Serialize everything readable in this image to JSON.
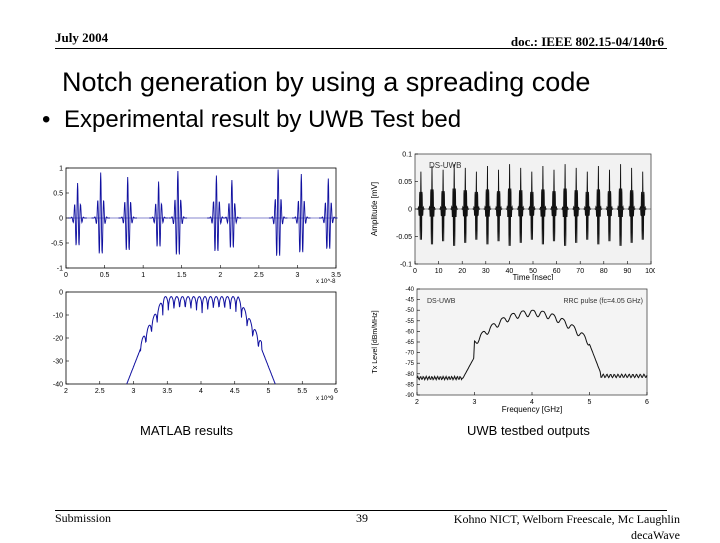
{
  "header": {
    "date": "July 2004",
    "doc": "doc.: IEEE 802.15-04/140r6"
  },
  "title": "Notch generation by using a spreading code",
  "bullet": "Experimental result by UWB Test bed",
  "captions": {
    "left": "MATLAB results",
    "right": "UWB testbed outputs"
  },
  "footer": {
    "left": "Submission",
    "page": "39",
    "right_line1": "Kohno NICT, Welborn Freescale, Mc Laughlin",
    "right_line2": "decaWave"
  },
  "chart_data": [
    {
      "type": "line",
      "panel": "matlab-time",
      "x_ticks": [
        "0",
        "0.5",
        "1",
        "1.5",
        "2",
        "2.5",
        "3",
        "3.5"
      ],
      "x_exponent": "x 10^-8",
      "y_ticks": [
        "1",
        "0.5",
        "0",
        "-0.5",
        "-1"
      ],
      "xlim": [
        0,
        3.5
      ],
      "ylim": [
        -1,
        1
      ],
      "pulse_centers": [
        0.15,
        0.45,
        0.8,
        1.2,
        1.45,
        1.95,
        2.15,
        2.75,
        3.05,
        3.4
      ],
      "colors": {
        "trace": "#1010a0"
      }
    },
    {
      "type": "line",
      "panel": "matlab-spectrum",
      "x_ticks": [
        "2",
        "2.5",
        "3",
        "3.5",
        "4",
        "4.5",
        "5",
        "5.5",
        "6"
      ],
      "x_exponent": "x 10^9",
      "y_ticks": [
        "0",
        "-10",
        "-20",
        "-30",
        "-40"
      ],
      "xlim": [
        2,
        6
      ],
      "ylim": [
        -40,
        0
      ],
      "band_edges": [
        3.1,
        4.9
      ],
      "colors": {
        "trace": "#1010a0"
      }
    },
    {
      "type": "line",
      "panel": "testbed-time",
      "label": "DS-UWB",
      "xlabel": "Time [nsec]",
      "ylabel": "Amplitude [mV]",
      "x_ticks": [
        "0",
        "10",
        "20",
        "30",
        "40",
        "50",
        "60",
        "70",
        "80",
        "90",
        "100"
      ],
      "y_ticks": [
        "0.1",
        "0.05",
        "0",
        "-0.05",
        "-0.1"
      ],
      "xlim": [
        0,
        100
      ],
      "ylim": [
        -0.1,
        0.1
      ],
      "pulse_count": 21,
      "colors": {
        "trace": "#111111"
      }
    },
    {
      "type": "line",
      "panel": "testbed-spectrum",
      "label": "DS-UWB",
      "annotation": "RRC pulse (fc=4.05 GHz)",
      "xlabel": "Frequency [GHz]",
      "ylabel": "Tx Level [dBm/MHz]",
      "x_ticks": [
        "2",
        "3",
        "4",
        "5",
        "6"
      ],
      "y_ticks": [
        "-40",
        "-45",
        "-50",
        "-55",
        "-60",
        "-65",
        "-70",
        "-75",
        "-80",
        "-85",
        "-90"
      ],
      "xlim": [
        2,
        6
      ],
      "ylim": [
        -90,
        -40
      ],
      "band_edges": [
        3.0,
        5.0
      ],
      "colors": {
        "trace": "#111111"
      }
    }
  ]
}
